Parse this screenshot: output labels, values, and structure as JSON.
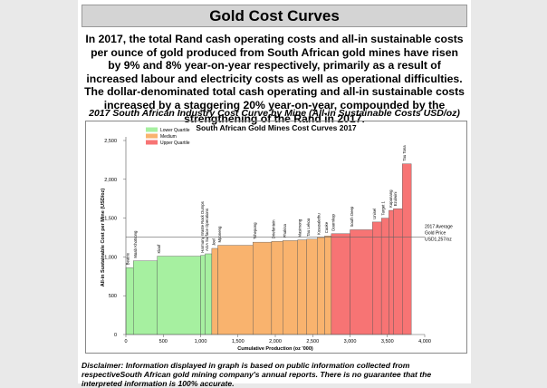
{
  "header": {
    "title": "Gold Cost Curves"
  },
  "summary": "In 2017, the total Rand cash operating costs and all-in sustainable costs per ounce of gold produced from South African gold mines have risen by 9% and 8% year-on-year respectively, primarily as a result of increased labour and electricity costs as well as operational difficulties. The dollar-denominated total cash operating and all-in sustainable costs increased by a staggering 20% year-on-year, compounded by the strengthening of the Rand in 2017.",
  "chart_data": {
    "type": "cost_curve",
    "title": "2017 South African Industry Cost Curve by Mine (All-in Sustainable Costs USD/oz)",
    "subtitle": "South African Gold Mines Cost Curves 2017",
    "x_label": "Cumulative Production (oz '000)",
    "y_label": "All-in Sustainable Cost per Mine (USD/oz)",
    "categories": [
      "Beatrix",
      "Moab Khotsong",
      "Kloof",
      "Harmony Waste Rock Dumps",
      "AGA Surface Operations",
      "Joel",
      "Mponeng",
      "Tshepong",
      "Driefontein",
      "Phakisa",
      "Masimong",
      "Tau Lekoa",
      "Kusasalethu",
      "Cooke",
      "Doornkop",
      "South Deep",
      "Unisel",
      "Target 1",
      "Kopanang",
      "Ezulwini",
      "Tau Tona"
    ],
    "bins": [
      0,
      100,
      420,
      1000,
      1060,
      1150,
      1230,
      1700,
      1950,
      2100,
      2300,
      2420,
      2560,
      2660,
      2750,
      3000,
      3300,
      3420,
      3520,
      3580,
      3700,
      3820
    ],
    "values": [
      860,
      950,
      1010,
      1020,
      1040,
      1110,
      1150,
      1190,
      1200,
      1210,
      1220,
      1230,
      1250,
      1270,
      1300,
      1350,
      1450,
      1500,
      1600,
      1620,
      2200
    ],
    "colors": [
      "#a6f0a0",
      "#a6f0a0",
      "#a6f0a0",
      "#a6f0a0",
      "#a6f0a0",
      "#f9b36e",
      "#f9b36e",
      "#f9b36e",
      "#f9b36e",
      "#f9b36e",
      "#f9b36e",
      "#f9b36e",
      "#f9b36e",
      "#f9b36e",
      "#f77474",
      "#f77474",
      "#f77474",
      "#f77474",
      "#f77474",
      "#f77474",
      "#f77474"
    ],
    "legend": [
      {
        "name": "Lower Quartile",
        "color": "#a6f0a0"
      },
      {
        "name": "Medium",
        "color": "#f9b36e"
      },
      {
        "name": "Upper Quartile",
        "color": "#f77474"
      }
    ],
    "xlim": [
      0,
      4000
    ],
    "ylim": [
      0,
      2500
    ],
    "xticks": [
      0,
      500,
      {
        "value": 1000,
        "label": "1,000"
      },
      {
        "value": 1500,
        "label": "1,500"
      },
      {
        "value": 2000,
        "label": "2,000"
      },
      {
        "value": 2500,
        "label": "2,500"
      },
      {
        "value": 3000,
        "label": "3,000"
      },
      {
        "value": 3500,
        "label": "3,500"
      },
      {
        "value": 4000,
        "label": "4,000"
      }
    ],
    "yticks": [
      0,
      500,
      {
        "value": 1000,
        "label": "1,000"
      },
      {
        "value": 1500,
        "label": "1,500"
      },
      {
        "value": 2000,
        "label": "2,000"
      },
      {
        "value": 2500,
        "label": "2,500"
      }
    ],
    "reference_line": {
      "value": 1257,
      "label": [
        "2017 Average",
        "Gold Price",
        "USD1,257/oz"
      ]
    }
  },
  "disclaimer": "Disclaimer: Information displayed in graph is based on public information collected from respectiveSouth African gold mining company's annual reports. There is no guarantee that the interpreted information is 100% accurate."
}
